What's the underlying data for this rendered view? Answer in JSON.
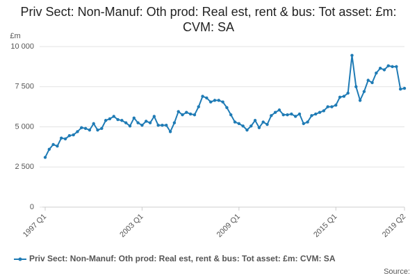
{
  "chart_data": {
    "type": "line",
    "title": "Priv Sect: Non-Manuf: Oth prod: Real est, rent & bus: Tot asset: £m: CVM: SA",
    "y_label": "£m",
    "source": "Source:",
    "categories": [
      "1997 Q1",
      null,
      null,
      null,
      null,
      null,
      null,
      null,
      null,
      null,
      null,
      null,
      null,
      null,
      null,
      null,
      null,
      null,
      null,
      null,
      null,
      null,
      null,
      null,
      "2003 Q1",
      null,
      null,
      null,
      null,
      null,
      null,
      null,
      null,
      null,
      null,
      null,
      null,
      null,
      null,
      null,
      null,
      null,
      null,
      null,
      null,
      null,
      null,
      null,
      "2009 Q1",
      null,
      null,
      null,
      null,
      null,
      null,
      null,
      null,
      null,
      null,
      null,
      null,
      null,
      null,
      null,
      null,
      null,
      null,
      null,
      null,
      null,
      null,
      null,
      "2015 Q1",
      null,
      null,
      null,
      null,
      null,
      null,
      null,
      null,
      null,
      null,
      null,
      null,
      null,
      null,
      null,
      null,
      "2019 Q2"
    ],
    "series": [
      {
        "name": "Priv Sect: Non-Manuf: Oth prod: Real est, rent & bus: Tot asset: £m: CVM: SA",
        "color": "#1f7bb5",
        "values": [
          3100,
          3600,
          3900,
          3800,
          4300,
          4250,
          4450,
          4500,
          4700,
          4950,
          4900,
          4800,
          5200,
          4800,
          4900,
          5400,
          5500,
          5650,
          5450,
          5400,
          5250,
          5050,
          5550,
          5250,
          5100,
          5350,
          5250,
          5650,
          5100,
          5100,
          5100,
          4700,
          5250,
          5950,
          5750,
          5900,
          5800,
          5750,
          6250,
          6900,
          6800,
          6550,
          6650,
          6650,
          6550,
          6200,
          5750,
          5300,
          5200,
          5050,
          4800,
          5050,
          5400,
          4950,
          5300,
          5150,
          5700,
          5900,
          6050,
          5750,
          5750,
          5800,
          5650,
          5800,
          5200,
          5300,
          5700,
          5800,
          5900,
          6000,
          6250,
          6250,
          6350,
          6850,
          6900,
          7100,
          9450,
          7500,
          6650,
          7200,
          7900,
          7750,
          8350,
          8650,
          8550,
          8800,
          8750,
          8750,
          7350,
          7400
        ]
      }
    ],
    "ylim": [
      0,
      10000
    ],
    "yticks": [
      0,
      {
        "value": 2500,
        "label": "2 500"
      },
      {
        "value": 5000,
        "label": "5 000"
      },
      {
        "value": 7500,
        "label": "7 500"
      },
      {
        "value": 10000,
        "label": "10 000"
      }
    ],
    "grid": true
  }
}
